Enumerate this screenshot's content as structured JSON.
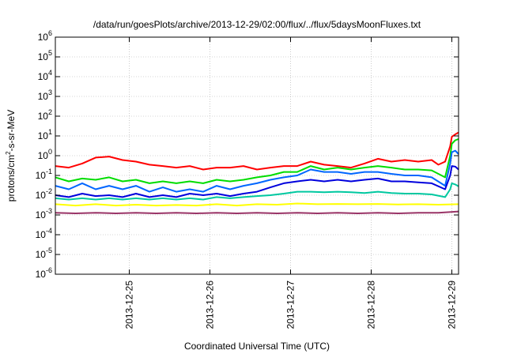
{
  "chart_data": {
    "type": "line",
    "title": "/data/run/goesPlots/archive/2013-12-29/02:00/flux/../flux/5daysMoonFluxes.txt",
    "xlabel": "Coordinated Universal Time (UTC)",
    "ylabel": "protons/cm²-s-sr-MeV",
    "ylabel_base": "protons/cm",
    "ylabel_sup": "2",
    "ylabel_rest": "-s-sr-MeV",
    "y_scale": "log",
    "ylim": [
      1e-06,
      1000000.0
    ],
    "xlim": [
      "2013-12-24T02:00",
      "2013-12-29T02:00"
    ],
    "grid": true,
    "y_ticks": [
      {
        "value": 1e-06,
        "base": "10",
        "exp": "-6"
      },
      {
        "value": 1e-05,
        "base": "10",
        "exp": "-5"
      },
      {
        "value": 0.0001,
        "base": "10",
        "exp": "-4"
      },
      {
        "value": 0.001,
        "base": "10",
        "exp": "-3"
      },
      {
        "value": 0.01,
        "base": "10",
        "exp": "-2"
      },
      {
        "value": 0.1,
        "base": "10",
        "exp": "-1"
      },
      {
        "value": 1,
        "base": "10",
        "exp": "0"
      },
      {
        "value": 10,
        "base": "10",
        "exp": "1"
      },
      {
        "value": 100,
        "base": "10",
        "exp": "2"
      },
      {
        "value": 1000,
        "base": "10",
        "exp": "3"
      },
      {
        "value": 10000,
        "base": "10",
        "exp": "4"
      },
      {
        "value": 100000,
        "base": "10",
        "exp": "5"
      },
      {
        "value": 1000000,
        "base": "10",
        "exp": "6"
      }
    ],
    "x_ticks": [
      "2013-12-25",
      "2013-12-26",
      "2013-12-27",
      "2013-12-28",
      "2013-12-29"
    ],
    "series": [
      {
        "color": "#ff0000",
        "points": [
          [
            "2013-12-24T02:00",
            0.3
          ],
          [
            "2013-12-24T06:00",
            0.25
          ],
          [
            "2013-12-24T10:00",
            0.4
          ],
          [
            "2013-12-24T14:00",
            0.8
          ],
          [
            "2013-12-24T18:00",
            0.9
          ],
          [
            "2013-12-24T22:00",
            0.6
          ],
          [
            "2013-12-25T02:00",
            0.5
          ],
          [
            "2013-12-25T06:00",
            0.35
          ],
          [
            "2013-12-25T10:00",
            0.3
          ],
          [
            "2013-12-25T14:00",
            0.25
          ],
          [
            "2013-12-25T18:00",
            0.3
          ],
          [
            "2013-12-25T22:00",
            0.2
          ],
          [
            "2013-12-26T02:00",
            0.25
          ],
          [
            "2013-12-26T06:00",
            0.25
          ],
          [
            "2013-12-26T10:00",
            0.3
          ],
          [
            "2013-12-26T14:00",
            0.2
          ],
          [
            "2013-12-26T18:00",
            0.25
          ],
          [
            "2013-12-26T22:00",
            0.3
          ],
          [
            "2013-12-27T02:00",
            0.3
          ],
          [
            "2013-12-27T06:00",
            0.5
          ],
          [
            "2013-12-27T10:00",
            0.35
          ],
          [
            "2013-12-27T14:00",
            0.3
          ],
          [
            "2013-12-27T18:00",
            0.25
          ],
          [
            "2013-12-27T22:00",
            0.4
          ],
          [
            "2013-12-28T02:00",
            0.7
          ],
          [
            "2013-12-28T06:00",
            0.5
          ],
          [
            "2013-12-28T10:00",
            0.6
          ],
          [
            "2013-12-28T14:00",
            0.5
          ],
          [
            "2013-12-28T18:00",
            0.6
          ],
          [
            "2013-12-28T20:00",
            0.35
          ],
          [
            "2013-12-28T22:00",
            0.5
          ],
          [
            "2013-12-28T23:30",
            3.0
          ],
          [
            "2013-12-29T00:00",
            9.0
          ],
          [
            "2013-12-29T01:00",
            12.0
          ],
          [
            "2013-12-29T02:00",
            15.0
          ]
        ]
      },
      {
        "color": "#00dd00",
        "points": [
          [
            "2013-12-24T02:00",
            0.08
          ],
          [
            "2013-12-24T06:00",
            0.05
          ],
          [
            "2013-12-24T10:00",
            0.07
          ],
          [
            "2013-12-24T14:00",
            0.06
          ],
          [
            "2013-12-24T18:00",
            0.08
          ],
          [
            "2013-12-24T22:00",
            0.05
          ],
          [
            "2013-12-25T02:00",
            0.06
          ],
          [
            "2013-12-25T06:00",
            0.04
          ],
          [
            "2013-12-25T10:00",
            0.05
          ],
          [
            "2013-12-25T14:00",
            0.04
          ],
          [
            "2013-12-25T18:00",
            0.05
          ],
          [
            "2013-12-25T22:00",
            0.04
          ],
          [
            "2013-12-26T02:00",
            0.06
          ],
          [
            "2013-12-26T06:00",
            0.05
          ],
          [
            "2013-12-26T10:00",
            0.06
          ],
          [
            "2013-12-26T14:00",
            0.08
          ],
          [
            "2013-12-26T18:00",
            0.1
          ],
          [
            "2013-12-26T22:00",
            0.15
          ],
          [
            "2013-12-27T02:00",
            0.15
          ],
          [
            "2013-12-27T06:00",
            0.3
          ],
          [
            "2013-12-27T10:00",
            0.2
          ],
          [
            "2013-12-27T14:00",
            0.25
          ],
          [
            "2013-12-27T18:00",
            0.2
          ],
          [
            "2013-12-27T22:00",
            0.25
          ],
          [
            "2013-12-28T02:00",
            0.3
          ],
          [
            "2013-12-28T06:00",
            0.25
          ],
          [
            "2013-12-28T10:00",
            0.2
          ],
          [
            "2013-12-28T14:00",
            0.2
          ],
          [
            "2013-12-28T18:00",
            0.18
          ],
          [
            "2013-12-28T22:00",
            0.08
          ],
          [
            "2013-12-28T23:30",
            1.0
          ],
          [
            "2013-12-29T00:00",
            4.0
          ],
          [
            "2013-12-29T01:00",
            6.0
          ],
          [
            "2013-12-29T02:00",
            7.0
          ]
        ]
      },
      {
        "color": "#0066ff",
        "points": [
          [
            "2013-12-24T02:00",
            0.03
          ],
          [
            "2013-12-24T06:00",
            0.02
          ],
          [
            "2013-12-24T10:00",
            0.04
          ],
          [
            "2013-12-24T14:00",
            0.02
          ],
          [
            "2013-12-24T18:00",
            0.03
          ],
          [
            "2013-12-24T22:00",
            0.02
          ],
          [
            "2013-12-25T02:00",
            0.03
          ],
          [
            "2013-12-25T06:00",
            0.015
          ],
          [
            "2013-12-25T10:00",
            0.025
          ],
          [
            "2013-12-25T14:00",
            0.015
          ],
          [
            "2013-12-25T18:00",
            0.02
          ],
          [
            "2013-12-25T22:00",
            0.015
          ],
          [
            "2013-12-26T02:00",
            0.03
          ],
          [
            "2013-12-26T06:00",
            0.02
          ],
          [
            "2013-12-26T10:00",
            0.03
          ],
          [
            "2013-12-26T14:00",
            0.04
          ],
          [
            "2013-12-26T18:00",
            0.06
          ],
          [
            "2013-12-26T22:00",
            0.08
          ],
          [
            "2013-12-27T02:00",
            0.1
          ],
          [
            "2013-12-27T06:00",
            0.2
          ],
          [
            "2013-12-27T10:00",
            0.15
          ],
          [
            "2013-12-27T14:00",
            0.15
          ],
          [
            "2013-12-27T18:00",
            0.12
          ],
          [
            "2013-12-27T22:00",
            0.15
          ],
          [
            "2013-12-28T02:00",
            0.15
          ],
          [
            "2013-12-28T06:00",
            0.12
          ],
          [
            "2013-12-28T10:00",
            0.1
          ],
          [
            "2013-12-28T14:00",
            0.1
          ],
          [
            "2013-12-28T18:00",
            0.08
          ],
          [
            "2013-12-28T22:00",
            0.03
          ],
          [
            "2013-12-28T23:30",
            0.4
          ],
          [
            "2013-12-29T00:00",
            1.5
          ],
          [
            "2013-12-29T01:00",
            1.8
          ],
          [
            "2013-12-29T02:00",
            1.2
          ]
        ]
      },
      {
        "color": "#0000dd",
        "points": [
          [
            "2013-12-24T02:00",
            0.01
          ],
          [
            "2013-12-24T06:00",
            0.008
          ],
          [
            "2013-12-24T10:00",
            0.012
          ],
          [
            "2013-12-24T14:00",
            0.009
          ],
          [
            "2013-12-24T18:00",
            0.01
          ],
          [
            "2013-12-24T22:00",
            0.008
          ],
          [
            "2013-12-25T02:00",
            0.012
          ],
          [
            "2013-12-25T06:00",
            0.008
          ],
          [
            "2013-12-25T10:00",
            0.01
          ],
          [
            "2013-12-25T14:00",
            0.008
          ],
          [
            "2013-12-25T18:00",
            0.012
          ],
          [
            "2013-12-25T22:00",
            0.01
          ],
          [
            "2013-12-26T02:00",
            0.012
          ],
          [
            "2013-12-26T06:00",
            0.009
          ],
          [
            "2013-12-26T10:00",
            0.012
          ],
          [
            "2013-12-26T14:00",
            0.015
          ],
          [
            "2013-12-26T18:00",
            0.025
          ],
          [
            "2013-12-26T22:00",
            0.04
          ],
          [
            "2013-12-27T02:00",
            0.05
          ],
          [
            "2013-12-27T06:00",
            0.06
          ],
          [
            "2013-12-27T10:00",
            0.05
          ],
          [
            "2013-12-27T14:00",
            0.06
          ],
          [
            "2013-12-27T18:00",
            0.05
          ],
          [
            "2013-12-27T22:00",
            0.06
          ],
          [
            "2013-12-28T02:00",
            0.07
          ],
          [
            "2013-12-28T06:00",
            0.05
          ],
          [
            "2013-12-28T10:00",
            0.05
          ],
          [
            "2013-12-28T14:00",
            0.045
          ],
          [
            "2013-12-28T18:00",
            0.04
          ],
          [
            "2013-12-28T22:00",
            0.02
          ],
          [
            "2013-12-28T23:30",
            0.1
          ],
          [
            "2013-12-29T00:00",
            0.3
          ],
          [
            "2013-12-29T01:00",
            0.28
          ],
          [
            "2013-12-29T02:00",
            0.2
          ]
        ]
      },
      {
        "color": "#00c8a0",
        "points": [
          [
            "2013-12-24T02:00",
            0.007
          ],
          [
            "2013-12-24T06:00",
            0.006
          ],
          [
            "2013-12-24T10:00",
            0.007
          ],
          [
            "2013-12-24T14:00",
            0.006
          ],
          [
            "2013-12-24T18:00",
            0.007
          ],
          [
            "2013-12-24T22:00",
            0.006
          ],
          [
            "2013-12-25T02:00",
            0.007
          ],
          [
            "2013-12-25T06:00",
            0.006
          ],
          [
            "2013-12-25T10:00",
            0.007
          ],
          [
            "2013-12-25T14:00",
            0.006
          ],
          [
            "2013-12-25T18:00",
            0.007
          ],
          [
            "2013-12-25T22:00",
            0.006
          ],
          [
            "2013-12-26T02:00",
            0.008
          ],
          [
            "2013-12-26T06:00",
            0.007
          ],
          [
            "2013-12-26T10:00",
            0.008
          ],
          [
            "2013-12-26T14:00",
            0.009
          ],
          [
            "2013-12-26T18:00",
            0.01
          ],
          [
            "2013-12-26T22:00",
            0.012
          ],
          [
            "2013-12-27T02:00",
            0.015
          ],
          [
            "2013-12-27T06:00",
            0.015
          ],
          [
            "2013-12-27T10:00",
            0.014
          ],
          [
            "2013-12-27T14:00",
            0.015
          ],
          [
            "2013-12-27T18:00",
            0.014
          ],
          [
            "2013-12-27T22:00",
            0.013
          ],
          [
            "2013-12-28T02:00",
            0.015
          ],
          [
            "2013-12-28T06:00",
            0.013
          ],
          [
            "2013-12-28T10:00",
            0.012
          ],
          [
            "2013-12-28T14:00",
            0.012
          ],
          [
            "2013-12-28T18:00",
            0.011
          ],
          [
            "2013-12-28T22:00",
            0.008
          ],
          [
            "2013-12-28T23:30",
            0.02
          ],
          [
            "2013-12-29T00:00",
            0.04
          ],
          [
            "2013-12-29T01:00",
            0.035
          ],
          [
            "2013-12-29T02:00",
            0.028
          ]
        ]
      },
      {
        "color": "#ffff00",
        "points": [
          [
            "2013-12-24T02:00",
            0.0035
          ],
          [
            "2013-12-24T08:00",
            0.003
          ],
          [
            "2013-12-24T14:00",
            0.0035
          ],
          [
            "2013-12-24T20:00",
            0.003
          ],
          [
            "2013-12-25T02:00",
            0.0033
          ],
          [
            "2013-12-25T08:00",
            0.003
          ],
          [
            "2013-12-25T14:00",
            0.0032
          ],
          [
            "2013-12-25T20:00",
            0.003
          ],
          [
            "2013-12-26T02:00",
            0.0035
          ],
          [
            "2013-12-26T08:00",
            0.003
          ],
          [
            "2013-12-26T14:00",
            0.0035
          ],
          [
            "2013-12-26T20:00",
            0.0033
          ],
          [
            "2013-12-27T02:00",
            0.0038
          ],
          [
            "2013-12-27T08:00",
            0.0035
          ],
          [
            "2013-12-27T14:00",
            0.0036
          ],
          [
            "2013-12-27T20:00",
            0.0035
          ],
          [
            "2013-12-28T02:00",
            0.0036
          ],
          [
            "2013-12-28T08:00",
            0.0034
          ],
          [
            "2013-12-28T14:00",
            0.0035
          ],
          [
            "2013-12-28T20:00",
            0.0033
          ],
          [
            "2013-12-29T02:00",
            0.0035
          ]
        ]
      },
      {
        "color": "#993366",
        "points": [
          [
            "2013-12-24T02:00",
            0.0013
          ],
          [
            "2013-12-24T08:00",
            0.0012
          ],
          [
            "2013-12-24T14:00",
            0.0013
          ],
          [
            "2013-12-24T20:00",
            0.0012
          ],
          [
            "2013-12-25T02:00",
            0.0013
          ],
          [
            "2013-12-25T08:00",
            0.0012
          ],
          [
            "2013-12-25T14:00",
            0.0013
          ],
          [
            "2013-12-25T20:00",
            0.0012
          ],
          [
            "2013-12-26T02:00",
            0.0013
          ],
          [
            "2013-12-26T08:00",
            0.0012
          ],
          [
            "2013-12-26T14:00",
            0.0013
          ],
          [
            "2013-12-26T20:00",
            0.0012
          ],
          [
            "2013-12-27T02:00",
            0.0013
          ],
          [
            "2013-12-27T08:00",
            0.0012
          ],
          [
            "2013-12-27T14:00",
            0.0013
          ],
          [
            "2013-12-27T20:00",
            0.0012
          ],
          [
            "2013-12-28T02:00",
            0.0013
          ],
          [
            "2013-12-28T08:00",
            0.0012
          ],
          [
            "2013-12-28T14:00",
            0.0013
          ],
          [
            "2013-12-28T20:00",
            0.0013
          ],
          [
            "2013-12-29T02:00",
            0.0015
          ]
        ]
      }
    ]
  }
}
